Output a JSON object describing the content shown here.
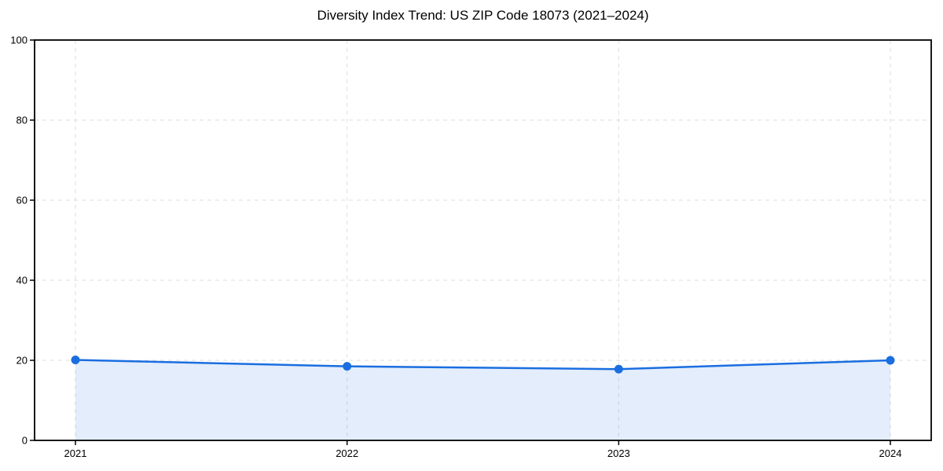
{
  "chart_data": {
    "type": "area",
    "title": "Diversity Index Trend: US ZIP Code 18073 (2021–2024)",
    "categories": [
      "2021",
      "2022",
      "2023",
      "2024"
    ],
    "series": [
      {
        "name": "Diversity Index",
        "values": [
          20.1,
          18.5,
          17.8,
          20.0
        ]
      }
    ],
    "xlabel": "",
    "ylabel": "",
    "ylim": [
      0,
      100
    ],
    "yticks": [
      0,
      20,
      40,
      60,
      80,
      100
    ],
    "grid": true,
    "grid_style": "dashed",
    "legend": false,
    "colors": {
      "line": "#1a6ee0",
      "marker": "#1a6ee0",
      "area_fill": "#1a6ee0",
      "area_opacity": 0.12,
      "grid": "#dedede",
      "axis": "#000000",
      "text": "#000000",
      "background": "#ffffff"
    }
  }
}
